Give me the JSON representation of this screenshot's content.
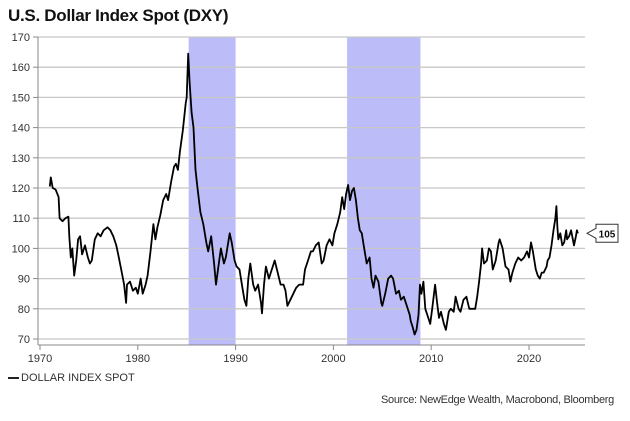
{
  "chart_data": {
    "type": "line",
    "title": "U.S. Dollar Index Spot (DXY)",
    "xlabel": "",
    "ylabel": "",
    "xlim": [
      1969.8,
      2025.7
    ],
    "ylim": [
      68,
      170
    ],
    "yticks": [
      70,
      80,
      90,
      100,
      110,
      120,
      130,
      140,
      150,
      160,
      170
    ],
    "xticks": [
      1970,
      1980,
      1990,
      2000,
      2010,
      2020
    ],
    "grid": true,
    "legend": {
      "placement": "bottom-left",
      "entries": [
        "DOLLAR INDEX SPOT"
      ]
    },
    "shaded_regions": [
      [
        1985.2,
        1990.0
      ],
      [
        2001.4,
        2008.9
      ]
    ],
    "last_value_label": "105",
    "series": [
      {
        "name": "DOLLAR INDEX SPOT",
        "color": "#000000",
        "points": [
          [
            1971.0,
            120.5
          ],
          [
            1971.1,
            123.5
          ],
          [
            1971.3,
            120
          ],
          [
            1971.6,
            119.5
          ],
          [
            1971.9,
            117
          ],
          [
            1972.0,
            110
          ],
          [
            1972.3,
            109
          ],
          [
            1972.6,
            110
          ],
          [
            1972.9,
            110.5
          ],
          [
            1973.0,
            104
          ],
          [
            1973.15,
            97
          ],
          [
            1973.3,
            100
          ],
          [
            1973.5,
            91
          ],
          [
            1973.7,
            96
          ],
          [
            1973.9,
            103
          ],
          [
            1974.1,
            104
          ],
          [
            1974.3,
            98
          ],
          [
            1974.6,
            101
          ],
          [
            1974.9,
            97
          ],
          [
            1975.1,
            95
          ],
          [
            1975.3,
            96
          ],
          [
            1975.6,
            103
          ],
          [
            1975.9,
            105
          ],
          [
            1976.2,
            104
          ],
          [
            1976.5,
            106
          ],
          [
            1976.9,
            107
          ],
          [
            1977.2,
            106
          ],
          [
            1977.5,
            104
          ],
          [
            1977.8,
            101
          ],
          [
            1978.0,
            98
          ],
          [
            1978.3,
            93
          ],
          [
            1978.6,
            88
          ],
          [
            1978.8,
            82
          ],
          [
            1978.9,
            88
          ],
          [
            1979.2,
            89
          ],
          [
            1979.5,
            86
          ],
          [
            1979.8,
            87
          ],
          [
            1980.0,
            85
          ],
          [
            1980.3,
            90
          ],
          [
            1980.5,
            85
          ],
          [
            1980.8,
            88
          ],
          [
            1981.0,
            91
          ],
          [
            1981.3,
            99
          ],
          [
            1981.6,
            108
          ],
          [
            1981.8,
            103
          ],
          [
            1982.0,
            107
          ],
          [
            1982.3,
            111
          ],
          [
            1982.6,
            116
          ],
          [
            1982.9,
            118
          ],
          [
            1983.1,
            116
          ],
          [
            1983.4,
            122
          ],
          [
            1983.7,
            127
          ],
          [
            1983.9,
            128
          ],
          [
            1984.1,
            126
          ],
          [
            1984.3,
            132
          ],
          [
            1984.6,
            139
          ],
          [
            1984.9,
            148
          ],
          [
            1985.0,
            150
          ],
          [
            1985.15,
            164.5
          ],
          [
            1985.3,
            155
          ],
          [
            1985.5,
            145
          ],
          [
            1985.7,
            140
          ],
          [
            1985.9,
            126
          ],
          [
            1986.1,
            120
          ],
          [
            1986.4,
            112
          ],
          [
            1986.7,
            108
          ],
          [
            1987.0,
            102
          ],
          [
            1987.2,
            99
          ],
          [
            1987.5,
            104
          ],
          [
            1987.8,
            95
          ],
          [
            1988.0,
            88
          ],
          [
            1988.2,
            93
          ],
          [
            1988.5,
            100
          ],
          [
            1988.8,
            95
          ],
          [
            1989.0,
            97
          ],
          [
            1989.4,
            105
          ],
          [
            1989.6,
            102
          ],
          [
            1989.9,
            96
          ],
          [
            1990.1,
            94
          ],
          [
            1990.4,
            93
          ],
          [
            1990.7,
            87
          ],
          [
            1990.9,
            83
          ],
          [
            1991.1,
            81
          ],
          [
            1991.3,
            90
          ],
          [
            1991.5,
            95
          ],
          [
            1991.8,
            88
          ],
          [
            1992.0,
            86
          ],
          [
            1992.3,
            88
          ],
          [
            1992.6,
            82
          ],
          [
            1992.7,
            78.5
          ],
          [
            1992.9,
            88
          ],
          [
            1993.1,
            94
          ],
          [
            1993.4,
            90
          ],
          [
            1993.7,
            93
          ],
          [
            1994.0,
            96
          ],
          [
            1994.3,
            92
          ],
          [
            1994.6,
            88
          ],
          [
            1994.9,
            88
          ],
          [
            1995.1,
            86
          ],
          [
            1995.3,
            81
          ],
          [
            1995.6,
            83
          ],
          [
            1995.9,
            85
          ],
          [
            1996.2,
            87
          ],
          [
            1996.5,
            88
          ],
          [
            1996.9,
            88
          ],
          [
            1997.1,
            93
          ],
          [
            1997.4,
            96
          ],
          [
            1997.7,
            99
          ],
          [
            1997.9,
            99
          ],
          [
            1998.2,
            101
          ],
          [
            1998.5,
            102
          ],
          [
            1998.8,
            95
          ],
          [
            1999.0,
            96
          ],
          [
            1999.3,
            101
          ],
          [
            1999.6,
            103
          ],
          [
            1999.9,
            101
          ],
          [
            2000.1,
            105
          ],
          [
            2000.4,
            108
          ],
          [
            2000.7,
            112
          ],
          [
            2000.9,
            117
          ],
          [
            2001.1,
            113
          ],
          [
            2001.3,
            118
          ],
          [
            2001.5,
            121
          ],
          [
            2001.7,
            116
          ],
          [
            2001.9,
            119
          ],
          [
            2002.1,
            120
          ],
          [
            2002.3,
            116
          ],
          [
            2002.5,
            110
          ],
          [
            2002.7,
            106
          ],
          [
            2002.9,
            105
          ],
          [
            2003.1,
            101
          ],
          [
            2003.4,
            95
          ],
          [
            2003.7,
            97
          ],
          [
            2003.9,
            90
          ],
          [
            2004.1,
            87
          ],
          [
            2004.3,
            91
          ],
          [
            2004.6,
            89
          ],
          [
            2004.9,
            82
          ],
          [
            2005.0,
            81
          ],
          [
            2005.3,
            85
          ],
          [
            2005.6,
            90
          ],
          [
            2005.9,
            91
          ],
          [
            2006.1,
            90
          ],
          [
            2006.4,
            85
          ],
          [
            2006.7,
            86
          ],
          [
            2006.9,
            83
          ],
          [
            2007.2,
            84
          ],
          [
            2007.5,
            81
          ],
          [
            2007.8,
            78
          ],
          [
            2007.9,
            76
          ],
          [
            2008.1,
            74
          ],
          [
            2008.3,
            71.5
          ],
          [
            2008.5,
            73
          ],
          [
            2008.7,
            78
          ],
          [
            2008.85,
            88
          ],
          [
            2009.0,
            85
          ],
          [
            2009.2,
            89
          ],
          [
            2009.4,
            80
          ],
          [
            2009.7,
            77
          ],
          [
            2009.9,
            75
          ],
          [
            2010.1,
            80
          ],
          [
            2010.4,
            88
          ],
          [
            2010.6,
            82
          ],
          [
            2010.8,
            77
          ],
          [
            2011.0,
            79
          ],
          [
            2011.3,
            75
          ],
          [
            2011.5,
            73
          ],
          [
            2011.8,
            79
          ],
          [
            2012.0,
            80
          ],
          [
            2012.3,
            79
          ],
          [
            2012.5,
            84
          ],
          [
            2012.8,
            80
          ],
          [
            2013.0,
            79
          ],
          [
            2013.3,
            83
          ],
          [
            2013.6,
            84
          ],
          [
            2013.9,
            80
          ],
          [
            2014.2,
            80
          ],
          [
            2014.5,
            80
          ],
          [
            2014.7,
            84
          ],
          [
            2014.9,
            89
          ],
          [
            2015.1,
            95
          ],
          [
            2015.2,
            100
          ],
          [
            2015.4,
            95
          ],
          [
            2015.7,
            96
          ],
          [
            2015.9,
            100
          ],
          [
            2016.1,
            99
          ],
          [
            2016.3,
            93
          ],
          [
            2016.6,
            96
          ],
          [
            2016.9,
            102
          ],
          [
            2017.0,
            103
          ],
          [
            2017.3,
            100
          ],
          [
            2017.6,
            94
          ],
          [
            2017.9,
            93
          ],
          [
            2018.1,
            89
          ],
          [
            2018.3,
            92
          ],
          [
            2018.6,
            95
          ],
          [
            2018.9,
            97
          ],
          [
            2019.2,
            96
          ],
          [
            2019.5,
            97
          ],
          [
            2019.8,
            99
          ],
          [
            2020.0,
            97
          ],
          [
            2020.2,
            102
          ],
          [
            2020.4,
            99
          ],
          [
            2020.7,
            93
          ],
          [
            2020.9,
            91
          ],
          [
            2021.1,
            90
          ],
          [
            2021.3,
            92
          ],
          [
            2021.5,
            92
          ],
          [
            2021.8,
            94
          ],
          [
            2021.9,
            96
          ],
          [
            2022.1,
            97
          ],
          [
            2022.3,
            101
          ],
          [
            2022.5,
            106
          ],
          [
            2022.7,
            110
          ],
          [
            2022.8,
            114
          ],
          [
            2022.9,
            107
          ],
          [
            2023.0,
            103
          ],
          [
            2023.2,
            105
          ],
          [
            2023.4,
            101
          ],
          [
            2023.6,
            102
          ],
          [
            2023.8,
            106
          ],
          [
            2023.9,
            103
          ],
          [
            2024.1,
            104
          ],
          [
            2024.3,
            106
          ],
          [
            2024.6,
            101
          ],
          [
            2024.8,
            104
          ],
          [
            2024.9,
            106
          ],
          [
            2025.0,
            105
          ]
        ]
      }
    ]
  },
  "footer": {
    "source": "Source: NewEdge Wealth, Macrobond, Bloomberg"
  }
}
